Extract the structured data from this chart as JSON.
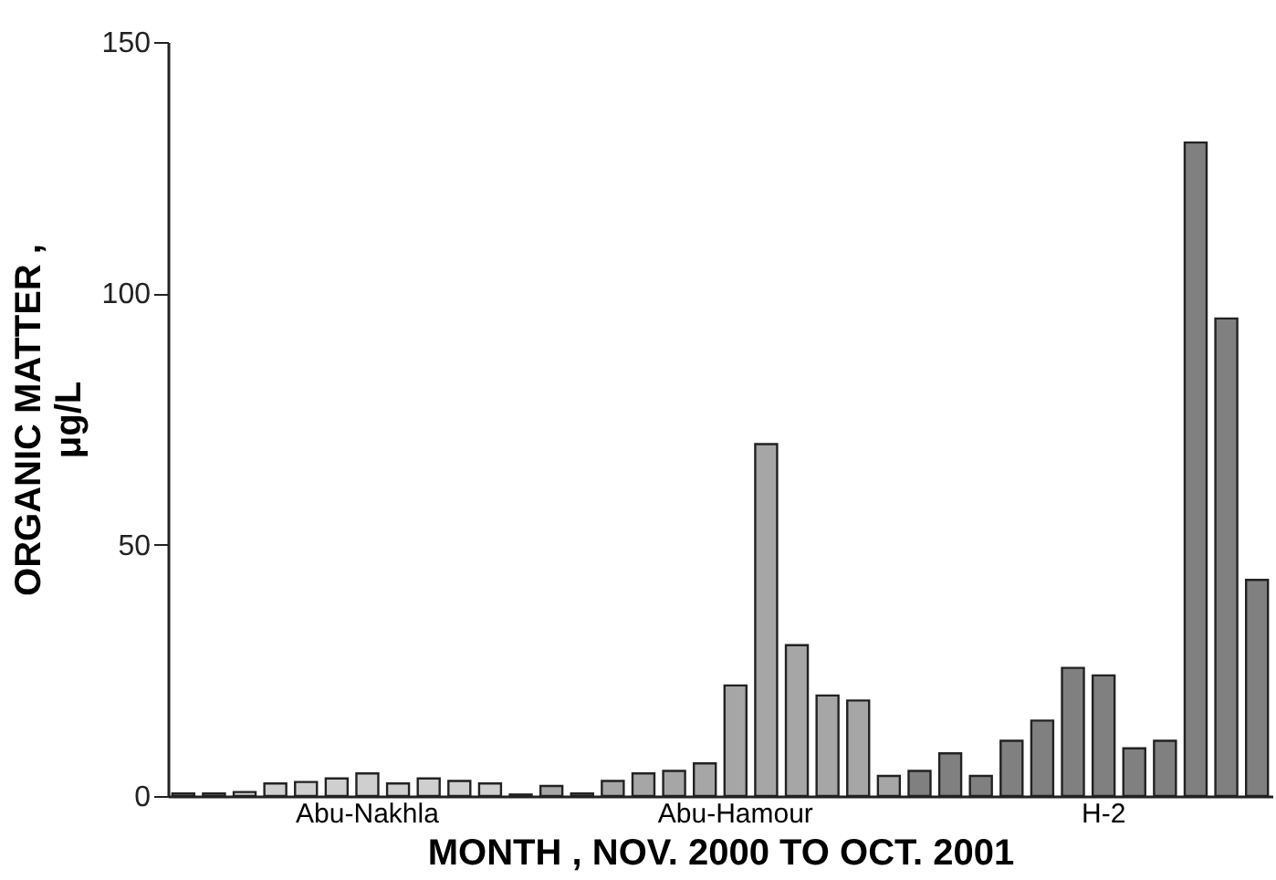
{
  "chart_data": {
    "type": "bar",
    "xlabel": "MONTH , NOV. 2000 TO OCT. 2001",
    "ylabel": "ORGANIC MATTER ,\nμg/L",
    "categories": [
      null,
      null,
      null,
      null,
      null,
      null,
      "Abu-Nakhla",
      null,
      null,
      null,
      null,
      null,
      null,
      null,
      null,
      null,
      null,
      null,
      null,
      "Abu-Hamour",
      null,
      null,
      null,
      null,
      null,
      null,
      null,
      null,
      null,
      null,
      null,
      null,
      "H-2",
      null,
      null,
      null,
      null,
      null
    ],
    "values": [
      0.5,
      0.5,
      0.8,
      2.5,
      2.8,
      3.5,
      4.5,
      2.5,
      3.5,
      3,
      2.5,
      0.3,
      null,
      2,
      0.5,
      3,
      4.5,
      5,
      6.5,
      22,
      70,
      30,
      20,
      19,
      4,
      null,
      5,
      8.5,
      4,
      11,
      15,
      25.5,
      24,
      9.5,
      11,
      130,
      95,
      43
    ],
    "colors": [
      "#cfcfcf",
      "#cfcfcf",
      "#cfcfcf",
      "#cfcfcf",
      "#cfcfcf",
      "#cfcfcf",
      "#cfcfcf",
      "#cfcfcf",
      "#cfcfcf",
      "#cfcfcf",
      "#cfcfcf",
      "#cfcfcf",
      "#ffffff",
      "#a6a6a6",
      "#a6a6a6",
      "#a6a6a6",
      "#a6a6a6",
      "#a6a6a6",
      "#a6a6a6",
      "#a6a6a6",
      "#a6a6a6",
      "#a6a6a6",
      "#a6a6a6",
      "#a6a6a6",
      "#a6a6a6",
      "#ffffff",
      "#808080",
      "#808080",
      "#808080",
      "#808080",
      "#808080",
      "#808080",
      "#808080",
      "#808080",
      "#808080",
      "#808080",
      "#808080",
      "#808080"
    ],
    "ylim": [
      0,
      150
    ],
    "yticks": [
      0,
      50,
      100,
      150
    ],
    "grid": false
  }
}
